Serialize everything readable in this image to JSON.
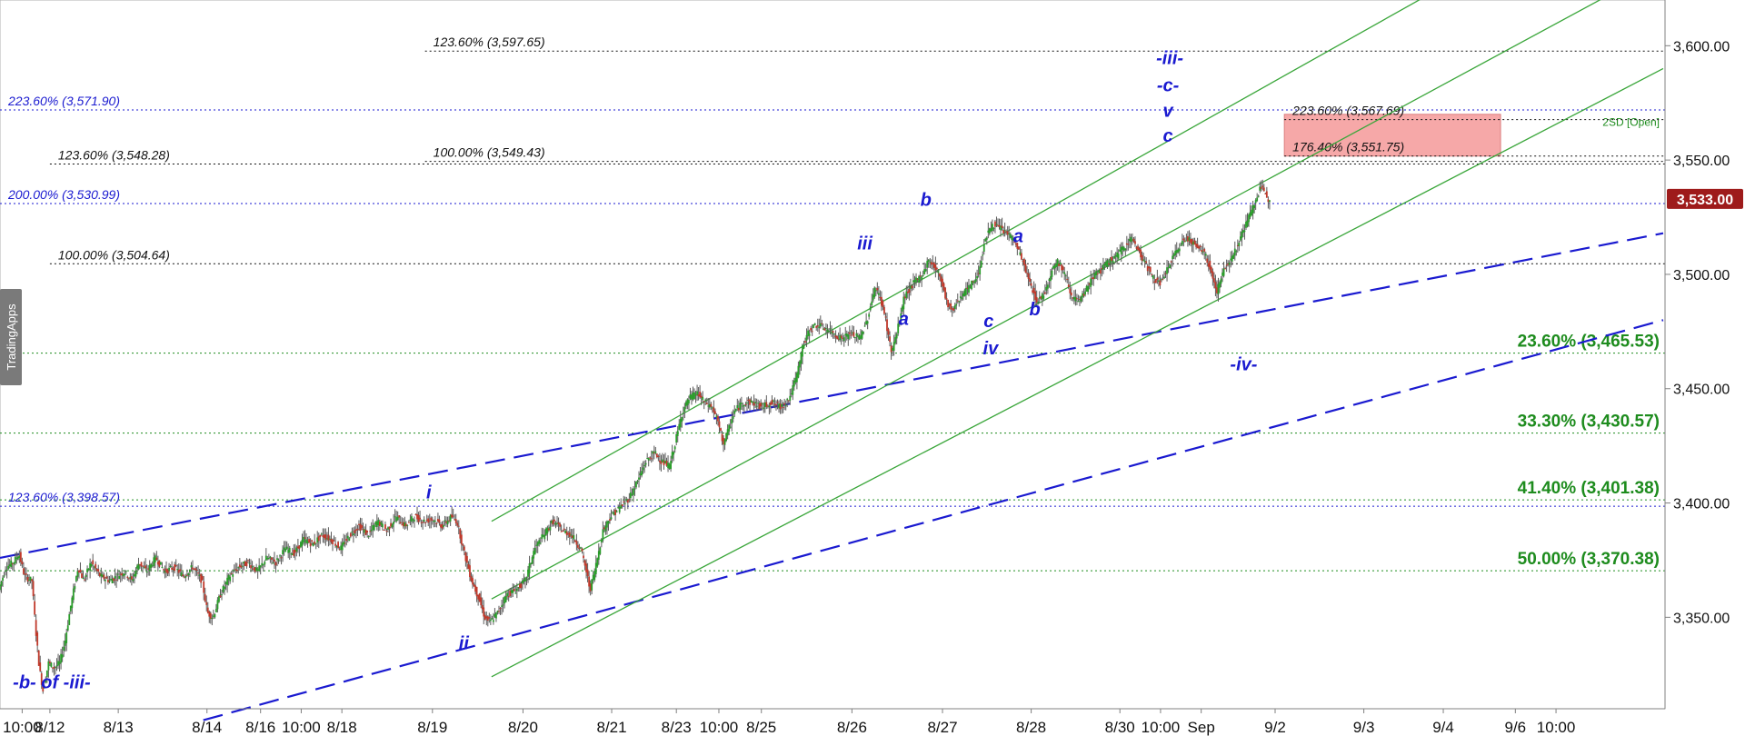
{
  "watermark": "TradingApps",
  "colors": {
    "background": "#ffffff",
    "candle": "#5a5a5a",
    "candle_up": "#2a9d2a",
    "candle_down": "#c0392b",
    "fib_blue": "#1a1ad0",
    "fib_black": "#111111",
    "fib_green": "#1e8c1e",
    "channel": "#3aa63a",
    "trend": "#1a1ad0",
    "wave": "#1a1ad0",
    "target_zone": "#f59a9a",
    "last_price_box": "#9e1b1b"
  },
  "chart_data": {
    "type": "candlestick",
    "title": "",
    "ylim": [
      3310,
      3620
    ],
    "price_ticks": [
      "3,350.00",
      "3,400.00",
      "3,450.00",
      "3,500.00",
      "3,550.00",
      "3,600.00"
    ],
    "price_tick_values": [
      3350,
      3400,
      3450,
      3500,
      3550,
      3600
    ],
    "last_price": "3,533.00",
    "last_price_value": 3533,
    "date_ticks": [
      {
        "label": "10:00",
        "x": 12
      },
      {
        "label": "8/12",
        "x": 27
      },
      {
        "label": "8/13",
        "x": 64
      },
      {
        "label": "8/14",
        "x": 112
      },
      {
        "label": "8/16",
        "x": 141
      },
      {
        "label": "10:00",
        "x": 163
      },
      {
        "label": "8/18",
        "x": 185
      },
      {
        "label": "8/19",
        "x": 234
      },
      {
        "label": "8/20",
        "x": 283
      },
      {
        "label": "8/21",
        "x": 331
      },
      {
        "label": "8/23",
        "x": 366
      },
      {
        "label": "10:00",
        "x": 389
      },
      {
        "label": "8/25",
        "x": 412
      },
      {
        "label": "8/26",
        "x": 461
      },
      {
        "label": "8/27",
        "x": 510
      },
      {
        "label": "8/28",
        "x": 558
      },
      {
        "label": "8/30",
        "x": 606
      },
      {
        "label": "10:00",
        "x": 628
      },
      {
        "label": "Sep",
        "x": 650
      },
      {
        "label": "9/2",
        "x": 690
      },
      {
        "label": "9/3",
        "x": 738
      },
      {
        "label": "9/4",
        "x": 781
      },
      {
        "label": "9/6",
        "x": 820
      },
      {
        "label": "10:00",
        "x": 842
      }
    ],
    "price_path": [
      [
        0,
        3362
      ],
      [
        4,
        3372
      ],
      [
        8,
        3374
      ],
      [
        11,
        3378
      ],
      [
        14,
        3368
      ],
      [
        18,
        3366
      ],
      [
        20,
        3345
      ],
      [
        22,
        3328
      ],
      [
        24,
        3318
      ],
      [
        27,
        3330
      ],
      [
        30,
        3328
      ],
      [
        33,
        3330
      ],
      [
        36,
        3340
      ],
      [
        39,
        3355
      ],
      [
        43,
        3372
      ],
      [
        46,
        3366
      ],
      [
        50,
        3374
      ],
      [
        55,
        3368
      ],
      [
        60,
        3366
      ],
      [
        64,
        3368
      ],
      [
        68,
        3370
      ],
      [
        72,
        3366
      ],
      [
        76,
        3374
      ],
      [
        80,
        3370
      ],
      [
        85,
        3376
      ],
      [
        90,
        3370
      ],
      [
        95,
        3372
      ],
      [
        100,
        3368
      ],
      [
        105,
        3372
      ],
      [
        110,
        3366
      ],
      [
        113,
        3352
      ],
      [
        116,
        3350
      ],
      [
        120,
        3360
      ],
      [
        125,
        3368
      ],
      [
        130,
        3372
      ],
      [
        135,
        3374
      ],
      [
        140,
        3370
      ],
      [
        145,
        3376
      ],
      [
        150,
        3374
      ],
      [
        155,
        3380
      ],
      [
        160,
        3378
      ],
      [
        165,
        3384
      ],
      [
        170,
        3382
      ],
      [
        175,
        3386
      ],
      [
        180,
        3384
      ],
      [
        185,
        3380
      ],
      [
        190,
        3386
      ],
      [
        195,
        3390
      ],
      [
        200,
        3386
      ],
      [
        205,
        3392
      ],
      [
        210,
        3388
      ],
      [
        215,
        3394
      ],
      [
        220,
        3390
      ],
      [
        225,
        3394
      ],
      [
        230,
        3392
      ],
      [
        235,
        3393
      ],
      [
        240,
        3390
      ],
      [
        245,
        3394
      ],
      [
        248,
        3392
      ],
      [
        252,
        3378
      ],
      [
        256,
        3366
      ],
      [
        260,
        3358
      ],
      [
        263,
        3350
      ],
      [
        266,
        3348
      ],
      [
        270,
        3352
      ],
      [
        275,
        3360
      ],
      [
        280,
        3362
      ],
      [
        285,
        3366
      ],
      [
        290,
        3380
      ],
      [
        295,
        3386
      ],
      [
        300,
        3392
      ],
      [
        305,
        3388
      ],
      [
        310,
        3386
      ],
      [
        315,
        3380
      ],
      [
        318,
        3370
      ],
      [
        320,
        3362
      ],
      [
        323,
        3372
      ],
      [
        327,
        3388
      ],
      [
        331,
        3394
      ],
      [
        336,
        3398
      ],
      [
        341,
        3402
      ],
      [
        346,
        3410
      ],
      [
        350,
        3418
      ],
      [
        355,
        3422
      ],
      [
        359,
        3418
      ],
      [
        363,
        3416
      ],
      [
        366,
        3426
      ],
      [
        370,
        3440
      ],
      [
        374,
        3446
      ],
      [
        378,
        3448
      ],
      [
        382,
        3444
      ],
      [
        386,
        3442
      ],
      [
        389,
        3436
      ],
      [
        392,
        3426
      ],
      [
        395,
        3432
      ],
      [
        398,
        3440
      ],
      [
        403,
        3444
      ],
      [
        408,
        3444
      ],
      [
        413,
        3442
      ],
      [
        418,
        3444
      ],
      [
        423,
        3442
      ],
      [
        428,
        3446
      ],
      [
        432,
        3456
      ],
      [
        435,
        3468
      ],
      [
        439,
        3476
      ],
      [
        443,
        3478
      ],
      [
        448,
        3476
      ],
      [
        452,
        3474
      ],
      [
        456,
        3472
      ],
      [
        461,
        3474
      ],
      [
        466,
        3472
      ],
      [
        470,
        3480
      ],
      [
        474,
        3494
      ],
      [
        477,
        3490
      ],
      [
        480,
        3480
      ],
      [
        483,
        3466
      ],
      [
        486,
        3474
      ],
      [
        490,
        3490
      ],
      [
        495,
        3496
      ],
      [
        500,
        3500
      ],
      [
        503,
        3506
      ],
      [
        506,
        3504
      ],
      [
        510,
        3498
      ],
      [
        513,
        3488
      ],
      [
        516,
        3484
      ],
      [
        520,
        3490
      ],
      [
        525,
        3494
      ],
      [
        530,
        3500
      ],
      [
        534,
        3516
      ],
      [
        538,
        3522
      ],
      [
        542,
        3520
      ],
      [
        546,
        3518
      ],
      [
        550,
        3514
      ],
      [
        554,
        3506
      ],
      [
        558,
        3496
      ],
      [
        562,
        3488
      ],
      [
        566,
        3492
      ],
      [
        570,
        3502
      ],
      [
        573,
        3506
      ],
      [
        577,
        3500
      ],
      [
        581,
        3490
      ],
      [
        585,
        3488
      ],
      [
        589,
        3494
      ],
      [
        593,
        3500
      ],
      [
        597,
        3502
      ],
      [
        601,
        3506
      ],
      [
        605,
        3508
      ],
      [
        609,
        3512
      ],
      [
        613,
        3516
      ],
      [
        617,
        3510
      ],
      [
        621,
        3504
      ],
      [
        625,
        3498
      ],
      [
        629,
        3496
      ],
      [
        632,
        3502
      ],
      [
        636,
        3508
      ],
      [
        640,
        3514
      ],
      [
        644,
        3516
      ],
      [
        648,
        3512
      ],
      [
        652,
        3510
      ],
      [
        656,
        3502
      ],
      [
        659,
        3492
      ],
      [
        662,
        3500
      ],
      [
        666,
        3506
      ],
      [
        670,
        3512
      ],
      [
        674,
        3520
      ],
      [
        677,
        3526
      ],
      [
        680,
        3532
      ],
      [
        683,
        3538
      ],
      [
        685,
        3536
      ],
      [
        687,
        3533
      ]
    ],
    "fib_levels": [
      {
        "label": "123.60% (3,597.65)",
        "value": 3597.65,
        "side": "left",
        "color": "fib_black",
        "label_x": 230,
        "line_from": 230
      },
      {
        "label": "223.60% (3,571.90)",
        "value": 3571.9,
        "side": "left",
        "color": "fib_blue",
        "label_x": 0,
        "line_from": 0
      },
      {
        "label": "223.60% (3,567.69)",
        "value": 3567.69,
        "side": "left",
        "color": "fib_black",
        "label_x": 695,
        "line_from": 695
      },
      {
        "label": "176.40% (3,551.75)",
        "value": 3551.75,
        "side": "left",
        "color": "fib_black",
        "label_x": 695,
        "line_from": 695
      },
      {
        "label": "100.00% (3,549.43)",
        "value": 3549.43,
        "side": "left",
        "color": "fib_black",
        "label_x": 230,
        "line_from": 230
      },
      {
        "label": "123.60% (3,548.28)",
        "value": 3548.28,
        "side": "left",
        "color": "fib_black",
        "label_x": 27,
        "line_from": 27
      },
      {
        "label": "200.00% (3,530.99)",
        "value": 3530.99,
        "side": "left",
        "color": "fib_blue",
        "label_x": 0,
        "line_from": 0
      },
      {
        "label": "100.00% (3,504.64)",
        "value": 3504.64,
        "side": "left",
        "color": "fib_black",
        "label_x": 27,
        "line_from": 27
      },
      {
        "label": "23.60% (3,465.53)",
        "value": 3465.53,
        "side": "right",
        "color": "fib_green",
        "line_from": 0
      },
      {
        "label": "33.30% (3,430.57)",
        "value": 3430.57,
        "side": "right",
        "color": "fib_green",
        "line_from": 0
      },
      {
        "label": "41.40% (3,401.38)",
        "value": 3401.38,
        "side": "right",
        "color": "fib_green",
        "line_from": 0
      },
      {
        "label": "123.60% (3,398.57)",
        "value": 3398.57,
        "side": "left",
        "color": "fib_blue",
        "label_x": 0,
        "line_from": 0
      },
      {
        "label": "50.00% (3,370.38)",
        "value": 3370.38,
        "side": "right",
        "color": "fib_green",
        "line_from": 0
      }
    ],
    "target_zone": {
      "x_from": 695,
      "x_to": 812,
      "y_from": 3551.75,
      "y_to": 3570
    },
    "zone_note": "2SD [Open]",
    "channel_lines": [
      {
        "x1": 266,
        "y1": 3392,
        "x2": 900,
        "y2": 3680
      },
      {
        "x1": 266,
        "y1": 3358,
        "x2": 900,
        "y2": 3635
      },
      {
        "x1": 266,
        "y1": 3324,
        "x2": 900,
        "y2": 3590
      }
    ],
    "trend_lines": [
      {
        "x1": 0,
        "y1": 3376,
        "x2": 900,
        "y2": 3518
      },
      {
        "x1": 110,
        "y1": 3305,
        "x2": 900,
        "y2": 3480
      }
    ],
    "wave_labels": [
      {
        "text": "-b- of -iii-",
        "x": 28,
        "y": 3319
      },
      {
        "text": "i",
        "x": 232,
        "y": 3402
      },
      {
        "text": "ii",
        "x": 251,
        "y": 3336
      },
      {
        "text": "iii",
        "x": 468,
        "y": 3511
      },
      {
        "text": "a",
        "x": 489,
        "y": 3478
      },
      {
        "text": "b",
        "x": 501,
        "y": 3530
      },
      {
        "text": "c",
        "x": 535,
        "y": 3477
      },
      {
        "text": "iv",
        "x": 536,
        "y": 3465
      },
      {
        "text": "a",
        "x": 551,
        "y": 3514
      },
      {
        "text": "b",
        "x": 560,
        "y": 3482
      },
      {
        "text": "-iii-",
        "x": 633,
        "y": 3592
      },
      {
        "text": "-c-",
        "x": 632,
        "y": 3580
      },
      {
        "text": "v",
        "x": 632,
        "y": 3569
      },
      {
        "text": "c",
        "x": 632,
        "y": 3558
      },
      {
        "text": "-iv-",
        "x": 673,
        "y": 3458
      }
    ]
  }
}
